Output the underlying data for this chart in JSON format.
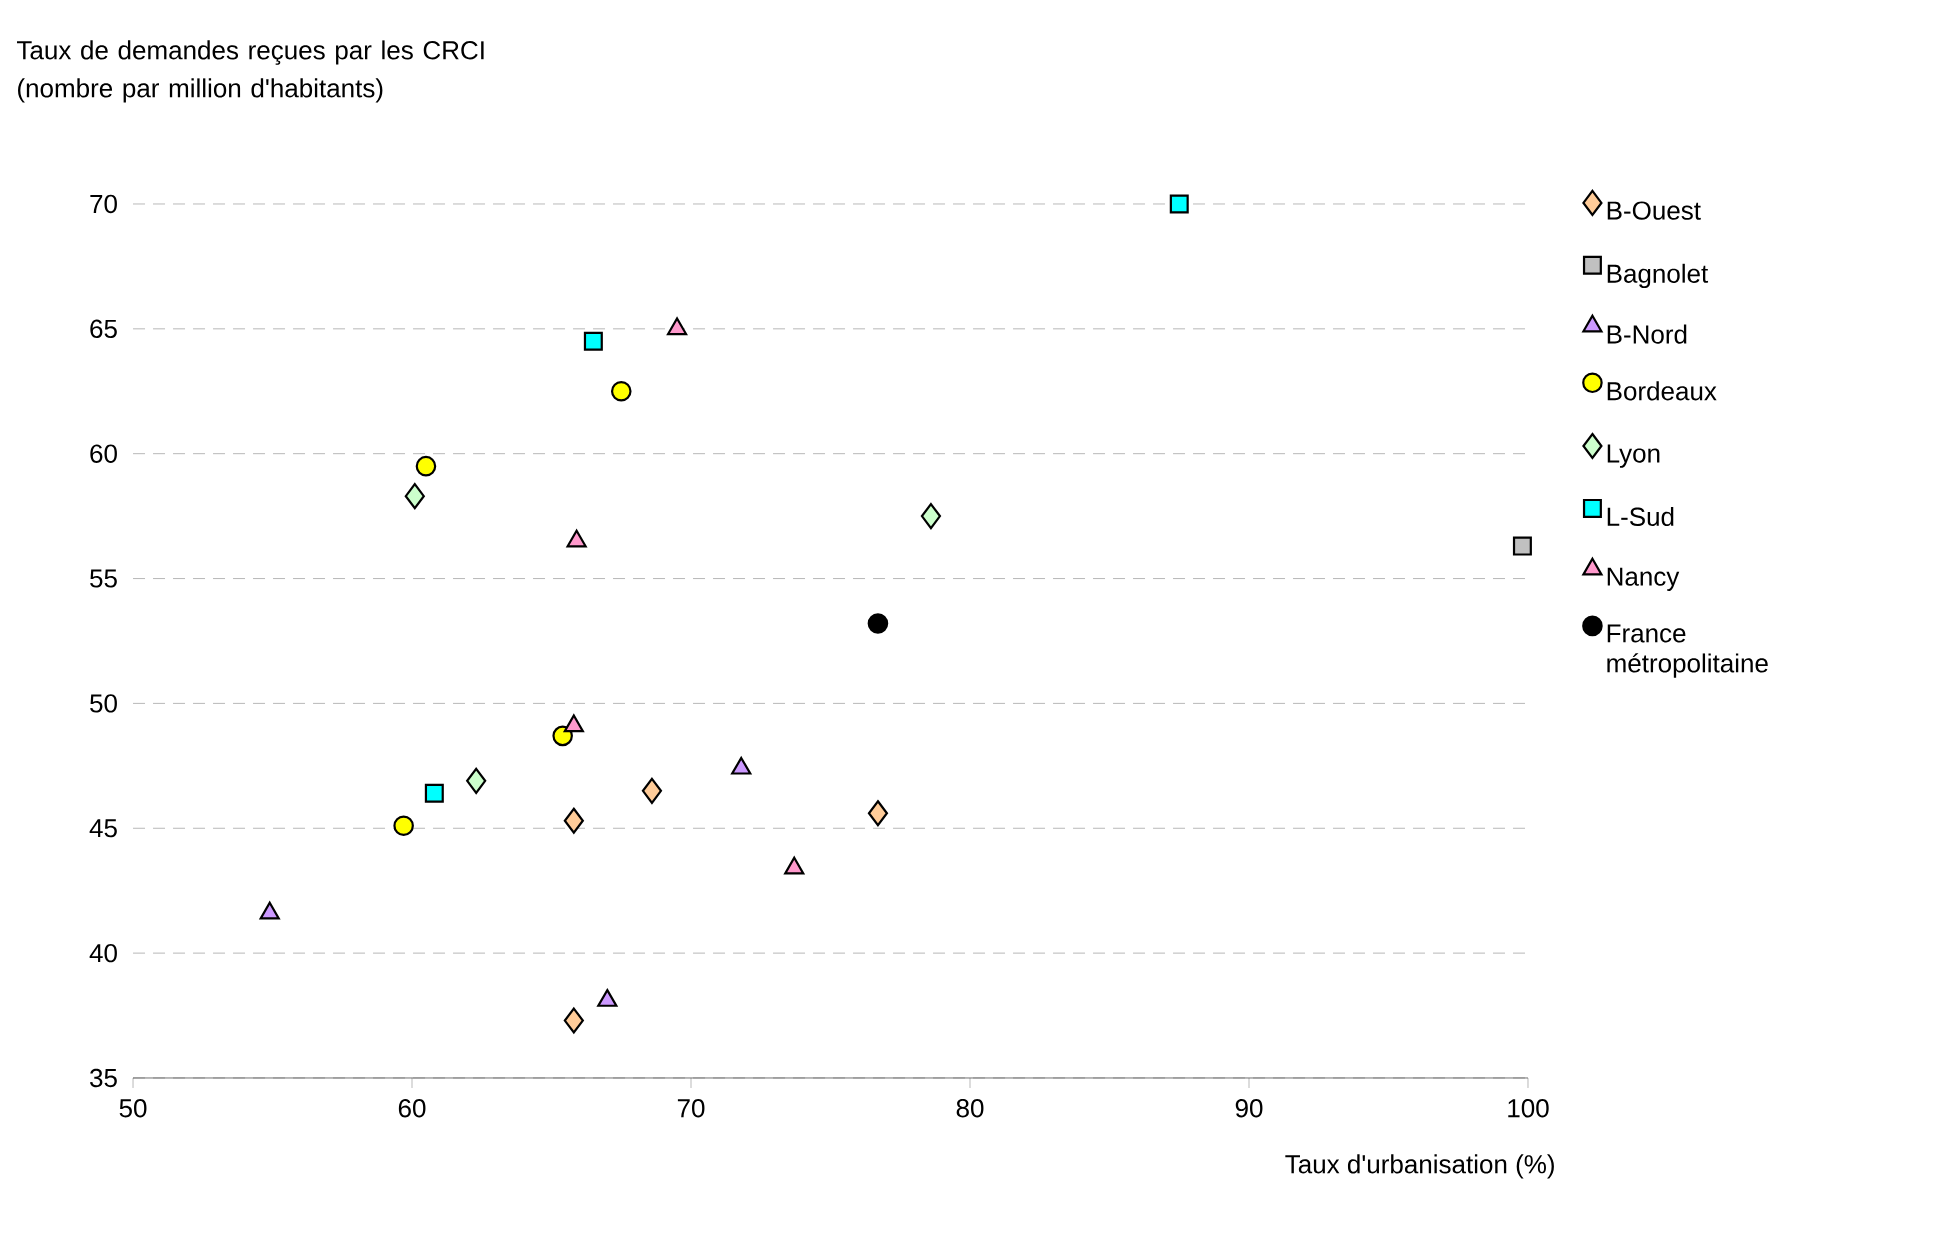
{
  "chart_data": {
    "type": "scatter",
    "ylabel": "Taux de demandes reçues par les CRCI (nombre par million d'habitants)",
    "xlabel": "Taux d'urbanisation (%)",
    "xlim": [
      50,
      100
    ],
    "xticks": [
      50,
      60,
      70,
      80,
      90,
      100
    ],
    "ylim": [
      35,
      70
    ],
    "yticks": [
      35,
      40,
      45,
      50,
      55,
      60,
      65,
      70
    ],
    "grid": "y",
    "legend": "right",
    "series": [
      {
        "name": "B-Ouest",
        "color": "#ffcc99",
        "marker": "diamond",
        "x": [
          65.8,
          68.6,
          76.7,
          65.8
        ],
        "values": [
          45.3,
          46.5,
          45.6,
          37.3
        ]
      },
      {
        "name": "Bagnolet",
        "color": "#c0c0c0",
        "marker": "square",
        "x": [
          99.8
        ],
        "values": [
          56.3
        ]
      },
      {
        "name": "B-Nord",
        "color": "#cc99ff",
        "marker": "triangle",
        "x": [
          54.9,
          71.8,
          67.0
        ],
        "values": [
          41.6,
          47.4,
          38.1
        ]
      },
      {
        "name": "Bordeaux",
        "color": "#ffff00",
        "marker": "circle",
        "x": [
          60.5,
          67.5,
          59.7,
          65.4
        ],
        "values": [
          59.5,
          62.5,
          45.1,
          48.7
        ]
      },
      {
        "name": "Lyon",
        "color": "#ccffcc",
        "marker": "diamond",
        "x": [
          60.1,
          78.6,
          62.3
        ],
        "values": [
          58.3,
          57.5,
          46.9
        ]
      },
      {
        "name": "L-Sud",
        "color": "#00ffff",
        "marker": "square",
        "x": [
          66.5,
          87.5,
          60.8
        ],
        "values": [
          64.5,
          70.0,
          46.4
        ]
      },
      {
        "name": "Nancy",
        "color": "#ff99cc",
        "marker": "triangle",
        "x": [
          69.5,
          65.9,
          65.8,
          73.7
        ],
        "values": [
          65.0,
          56.5,
          49.1,
          43.4
        ]
      },
      {
        "name": "France métropolitaine",
        "color": "#000000",
        "marker": "circle",
        "x": [
          76.7
        ],
        "values": [
          53.2
        ]
      }
    ]
  }
}
